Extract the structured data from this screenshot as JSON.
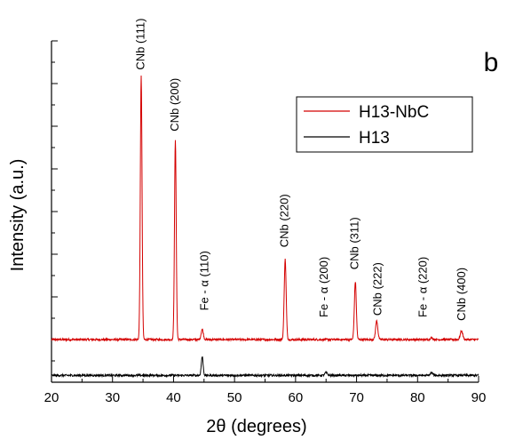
{
  "chart_data": {
    "type": "line",
    "panel_label": "b",
    "xlabel": "2θ (degrees)",
    "ylabel": "Intensity (a.u.)",
    "xlim": [
      20,
      90
    ],
    "x_ticks": [
      20,
      30,
      40,
      50,
      60,
      70,
      80,
      90
    ],
    "grid": false,
    "legend_position": "top-right",
    "series": [
      {
        "name": "H13-NbC",
        "color": "#d40000",
        "baseline": 0.125,
        "peaks": [
          {
            "x": 34.7,
            "height": 0.775,
            "width": 0.14
          },
          {
            "x": 40.3,
            "height": 0.585,
            "width": 0.14
          },
          {
            "x": 44.7,
            "height": 0.03,
            "width": 0.18
          },
          {
            "x": 58.3,
            "height": 0.235,
            "width": 0.16
          },
          {
            "x": 69.8,
            "height": 0.17,
            "width": 0.16
          },
          {
            "x": 73.3,
            "height": 0.055,
            "width": 0.18
          },
          {
            "x": 82.3,
            "height": 0.005,
            "width": 0.2
          },
          {
            "x": 87.2,
            "height": 0.025,
            "width": 0.2
          }
        ]
      },
      {
        "name": "H13",
        "color": "#000000",
        "baseline": 0.02,
        "peaks": [
          {
            "x": 44.7,
            "height": 0.055,
            "width": 0.15
          },
          {
            "x": 65.0,
            "height": 0.008,
            "width": 0.2
          },
          {
            "x": 82.3,
            "height": 0.008,
            "width": 0.2
          }
        ]
      }
    ],
    "annotations": [
      {
        "text": "CNb (111)",
        "x": 34.7,
        "y": 0.915
      },
      {
        "text": "CNb (200)",
        "x": 40.3,
        "y": 0.735
      },
      {
        "text": "Fe - α (110)",
        "x": 45.2,
        "y": 0.21
      },
      {
        "text": "CNb (220)",
        "x": 58.3,
        "y": 0.395
      },
      {
        "text": "Fe - α (200)",
        "x": 64.8,
        "y": 0.19
      },
      {
        "text": "CNb (311)",
        "x": 69.8,
        "y": 0.33
      },
      {
        "text": "CNb (222)",
        "x": 73.6,
        "y": 0.195
      },
      {
        "text": "Fe - α (220)",
        "x": 81.0,
        "y": 0.19
      },
      {
        "text": "CNb (400)",
        "x": 87.3,
        "y": 0.18
      }
    ]
  }
}
